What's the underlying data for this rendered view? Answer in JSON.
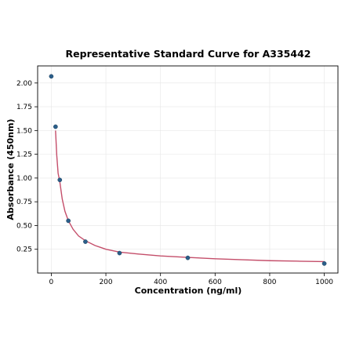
{
  "chart_data": {
    "type": "scatter",
    "title": "Representative Standard Curve for A335442",
    "xlabel": "Concentration (ng/ml)",
    "ylabel": "Absorbance (450nm)",
    "xlim": [
      -50,
      1050
    ],
    "ylim": [
      0,
      2.18
    ],
    "x_ticks": [
      0,
      200,
      400,
      600,
      800,
      1000
    ],
    "y_ticks": [
      0.25,
      0.5,
      0.75,
      1.0,
      1.25,
      1.5,
      1.75,
      2.0
    ],
    "x_tick_labels": [
      "0",
      "200",
      "400",
      "600",
      "800",
      "1000"
    ],
    "y_tick_labels": [
      "0.25",
      "0.50",
      "0.75",
      "1.00",
      "1.25",
      "1.50",
      "1.75",
      "2.00"
    ],
    "grid": true,
    "series": [
      {
        "points": [
          {
            "x": 0,
            "y": 2.07
          },
          {
            "x": 15.6,
            "y": 1.54
          },
          {
            "x": 31.25,
            "y": 0.98
          },
          {
            "x": 62.5,
            "y": 0.55
          },
          {
            "x": 125,
            "y": 0.33
          },
          {
            "x": 250,
            "y": 0.21
          },
          {
            "x": 500,
            "y": 0.16
          },
          {
            "x": 1000,
            "y": 0.1
          }
        ],
        "color": "#2b5f8a"
      }
    ],
    "fit_curve": {
      "color": "#c44e6a",
      "x": [
        15.6,
        20,
        25,
        31.25,
        40,
        50,
        62.5,
        80,
        100,
        125,
        160,
        200,
        250,
        320,
        400,
        500,
        600,
        700,
        800,
        900,
        1000
      ],
      "y": [
        1.5,
        1.24,
        1.05,
        0.96,
        0.78,
        0.65,
        0.55,
        0.46,
        0.39,
        0.34,
        0.29,
        0.25,
        0.22,
        0.2,
        0.18,
        0.165,
        0.15,
        0.14,
        0.13,
        0.125,
        0.12
      ]
    }
  }
}
